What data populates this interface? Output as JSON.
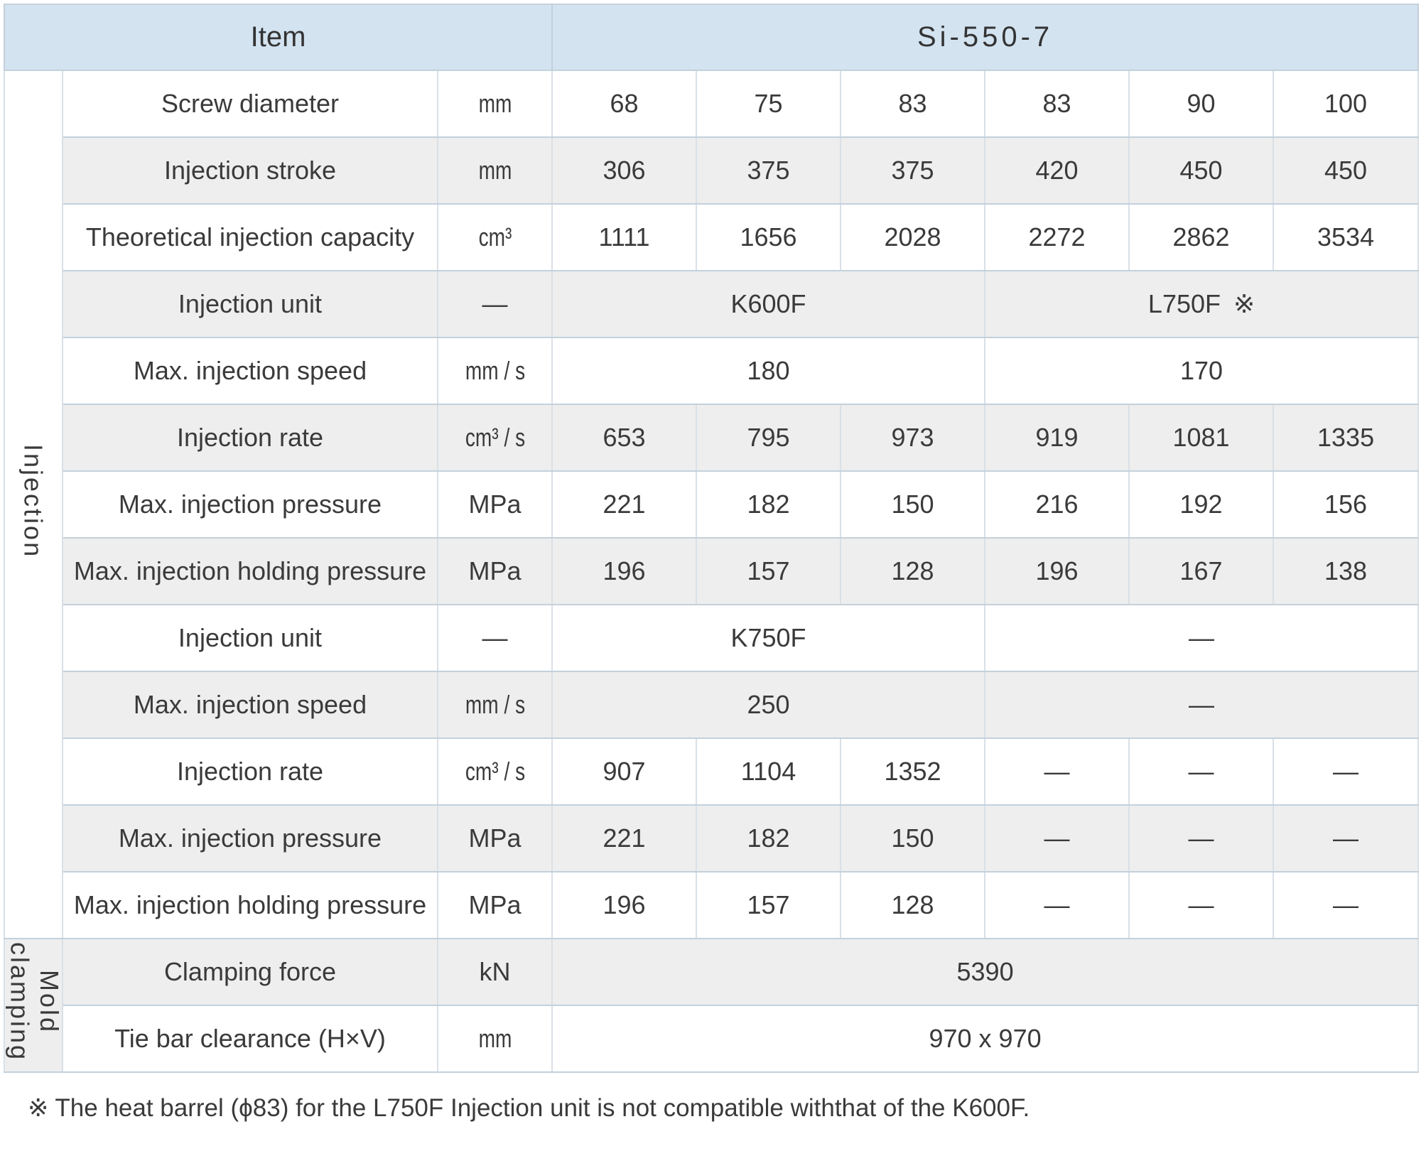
{
  "table": {
    "header": {
      "item": "Item",
      "model": "Si-550-7"
    },
    "sections": [
      {
        "id": "injection",
        "label": "Injection",
        "rows": [
          {
            "item": "Screw diameter",
            "unit": "mm",
            "cells": [
              {
                "t": "68",
                "span": 1
              },
              {
                "t": "75",
                "span": 1
              },
              {
                "t": "83",
                "span": 1
              },
              {
                "t": "83",
                "span": 1
              },
              {
                "t": "90",
                "span": 1
              },
              {
                "t": "100",
                "span": 1
              }
            ]
          },
          {
            "item": "Injection stroke",
            "unit": "mm",
            "cells": [
              {
                "t": "306",
                "span": 1
              },
              {
                "t": "375",
                "span": 1
              },
              {
                "t": "375",
                "span": 1
              },
              {
                "t": "420",
                "span": 1
              },
              {
                "t": "450",
                "span": 1
              },
              {
                "t": "450",
                "span": 1
              }
            ]
          },
          {
            "item": "Theoretical injection capacity",
            "unit": "cm³",
            "cells": [
              {
                "t": "1111",
                "span": 1
              },
              {
                "t": "1656",
                "span": 1
              },
              {
                "t": "2028",
                "span": 1
              },
              {
                "t": "2272",
                "span": 1
              },
              {
                "t": "2862",
                "span": 1
              },
              {
                "t": "3534",
                "span": 1
              }
            ]
          },
          {
            "item": "Injection unit",
            "unit": "—",
            "cells": [
              {
                "t": "K600F",
                "span": 3
              },
              {
                "t": "L750F ※",
                "span": 3
              }
            ]
          },
          {
            "item": "Max. injection speed",
            "unit": "mm / s",
            "cells": [
              {
                "t": "180",
                "span": 3
              },
              {
                "t": "170",
                "span": 3
              }
            ]
          },
          {
            "item": "Injection rate",
            "unit": "cm³ / s",
            "cells": [
              {
                "t": "653",
                "span": 1
              },
              {
                "t": "795",
                "span": 1
              },
              {
                "t": "973",
                "span": 1
              },
              {
                "t": "919",
                "span": 1
              },
              {
                "t": "1081",
                "span": 1
              },
              {
                "t": "1335",
                "span": 1
              }
            ]
          },
          {
            "item": "Max. injection pressure",
            "unit": "MPa",
            "cells": [
              {
                "t": "221",
                "span": 1
              },
              {
                "t": "182",
                "span": 1
              },
              {
                "t": "150",
                "span": 1
              },
              {
                "t": "216",
                "span": 1
              },
              {
                "t": "192",
                "span": 1
              },
              {
                "t": "156",
                "span": 1
              }
            ]
          },
          {
            "item": "Max. injection holding pressure",
            "unit": "MPa",
            "cells": [
              {
                "t": "196",
                "span": 1
              },
              {
                "t": "157",
                "span": 1
              },
              {
                "t": "128",
                "span": 1
              },
              {
                "t": "196",
                "span": 1
              },
              {
                "t": "167",
                "span": 1
              },
              {
                "t": "138",
                "span": 1
              }
            ]
          },
          {
            "item": "Injection unit",
            "unit": "—",
            "cells": [
              {
                "t": "K750F",
                "span": 3
              },
              {
                "t": "—",
                "span": 3
              }
            ]
          },
          {
            "item": "Max. injection speed",
            "unit": "mm / s",
            "cells": [
              {
                "t": "250",
                "span": 3
              },
              {
                "t": "—",
                "span": 3
              }
            ]
          },
          {
            "item": "Injection rate",
            "unit": "cm³ / s",
            "cells": [
              {
                "t": "907",
                "span": 1
              },
              {
                "t": "1104",
                "span": 1
              },
              {
                "t": "1352",
                "span": 1
              },
              {
                "t": "—",
                "span": 1
              },
              {
                "t": "—",
                "span": 1
              },
              {
                "t": "—",
                "span": 1
              }
            ]
          },
          {
            "item": "Max. injection pressure",
            "unit": "MPa",
            "cells": [
              {
                "t": "221",
                "span": 1
              },
              {
                "t": "182",
                "span": 1
              },
              {
                "t": "150",
                "span": 1
              },
              {
                "t": "—",
                "span": 1
              },
              {
                "t": "—",
                "span": 1
              },
              {
                "t": "—",
                "span": 1
              }
            ]
          },
          {
            "item": "Max. injection holding pressure",
            "unit": "MPa",
            "cells": [
              {
                "t": "196",
                "span": 1
              },
              {
                "t": "157",
                "span": 1
              },
              {
                "t": "128",
                "span": 1
              },
              {
                "t": "—",
                "span": 1
              },
              {
                "t": "—",
                "span": 1
              },
              {
                "t": "—",
                "span": 1
              }
            ]
          }
        ]
      },
      {
        "id": "mold-clamping",
        "label": "Mold clamping",
        "rows": [
          {
            "item": "Clamping force",
            "unit": "kN",
            "cells": [
              {
                "t": "5390",
                "span": 6
              }
            ]
          },
          {
            "item": "Tie bar clearance (H×V)",
            "unit": "mm",
            "cells": [
              {
                "t": "970 x 970",
                "span": 6
              }
            ]
          }
        ]
      }
    ],
    "footnote": "※ The heat barrel (ϕ83) for the L750F Injection unit is not compatible withthat of the K600F.",
    "colors": {
      "header_bg": "#d3e3f0",
      "row_alt_bg": "#eeeeee",
      "border_horizontal": "#c3d1dc",
      "border_vertical": "#d9e0e7",
      "text": "#3a3a3a"
    }
  }
}
